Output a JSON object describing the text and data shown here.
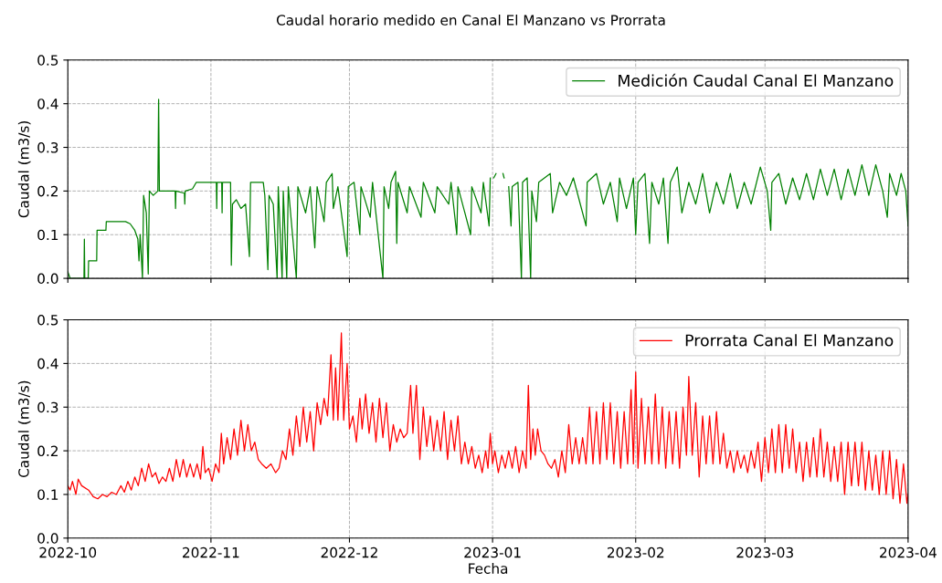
{
  "chart_data": [
    {
      "type": "line",
      "title": "Caudal horario medido en Canal El Manzano vs Prorrata",
      "ylabel": "Caudal (m3/s)",
      "xlim": [
        "2022-10-01",
        "2023-04-01"
      ],
      "xticks": [
        {
          "value": "2022-10-01",
          "label": null
        },
        {
          "value": "2022-11-01",
          "label": null
        },
        {
          "value": "2022-12-01",
          "label": null
        },
        {
          "value": "2023-01-01",
          "label": null
        },
        {
          "value": "2023-02-01",
          "label": null
        },
        {
          "value": "2023-03-01",
          "label": null
        },
        {
          "value": "2023-04-01",
          "label": null
        }
      ],
      "ylim": [
        0,
        0.5
      ],
      "yticks": [
        {
          "value": 0,
          "label": "0.0"
        },
        0.1,
        0.2,
        0.3,
        0.4,
        0.5
      ],
      "grid": true,
      "legend": "top right",
      "tick_labels": "y",
      "series": [
        {
          "name": "Medición Caudal Canal El Manzano",
          "color": "#008000",
          "x": [
            "2022-10-01T00:00",
            "2022-10-01T12:00",
            "2022-10-04T12:00",
            "2022-10-04T14:00",
            "2022-10-04T16:00",
            "2022-10-05T10:00",
            "2022-10-05T12:00",
            "2022-10-07T06:00",
            "2022-10-07T08:00",
            "2022-10-09T06:00",
            "2022-10-09T08:00",
            "2022-10-13T12:00",
            "2022-10-14T12:00",
            "2022-10-15T12:00",
            "2022-10-16T04:00",
            "2022-10-16T10:00",
            "2022-10-16T16:00",
            "2022-10-17T04:00",
            "2022-10-17T10:00",
            "2022-10-18T00:00",
            "2022-10-18T10:00",
            "2022-10-18T16:00",
            "2022-10-19T12:00",
            "2022-10-20T12:00",
            "2022-10-20T16:00",
            "2022-10-20T20:00",
            "2022-10-22T12:00",
            "2022-10-24T06:00",
            "2022-10-24T08:00",
            "2022-10-24T10:00",
            "2022-10-26T06:00",
            "2022-10-26T08:00",
            "2022-10-26T10:00",
            "2022-10-28T00:00",
            "2022-10-28T20:00",
            "2022-11-01T12:00",
            "2022-11-02T04:00",
            "2022-11-02T06:00",
            "2022-11-02T08:00",
            "2022-11-03T08:00",
            "2022-11-03T10:00",
            "2022-11-03T12:00",
            "2022-11-05T06:00",
            "2022-11-05T10:00",
            "2022-11-05T16:00",
            "2022-11-06T12:00",
            "2022-11-07T12:00",
            "2022-11-08T12:00",
            "2022-11-09T08:00",
            "2022-11-09T14:00",
            "2022-11-12T08:00",
            "2022-11-12T16:00",
            "2022-11-13T08:00",
            "2022-11-13T14:00",
            "2022-11-14T12:00",
            "2022-11-15T08:00",
            "2022-11-15T14:00",
            "2022-11-16T10:00",
            "2022-11-16T16:00",
            "2022-11-17T10:00",
            "2022-11-17T18:00",
            "2022-11-19T12:00",
            "2022-11-19T20:00",
            "2022-11-21T12:00",
            "2022-11-22T12:00",
            "2022-11-23T12:00",
            "2022-11-24T00:00",
            "2022-11-25T12:00",
            "2022-11-26T00:00",
            "2022-11-27T06:00",
            "2022-11-27T12:00",
            "2022-11-28T12:00",
            "2022-11-30T12:00",
            "2022-11-30T18:00",
            "2022-12-02T00:00",
            "2022-12-03T06:00",
            "2022-12-03T12:00",
            "2022-12-05T12:00",
            "2022-12-06T00:00",
            "2022-12-08T06:00",
            "2022-12-08T12:00",
            "2022-12-09T12:00",
            "2022-12-10T00:00",
            "2022-12-11T00:00",
            "2022-12-11T06:00",
            "2022-12-11T12:00",
            "2022-12-13T12:00",
            "2022-12-14T00:00",
            "2022-12-16T12:00",
            "2022-12-17T00:00",
            "2022-12-19T12:00",
            "2022-12-20T00:00",
            "2022-12-22T12:00",
            "2022-12-23T00:00",
            "2022-12-24T06:00",
            "2022-12-24T12:00",
            "2022-12-27T06:00",
            "2022-12-27T12:00",
            "2022-12-29T12:00",
            "2022-12-30T00:00",
            "2022-12-31T06:00",
            "2022-12-31T12:00",
            "2022-12-31T18:00",
            "2023-01-01T06:00",
            "2023-01-01T18:00",
            "2023-01-02T06:00",
            "2023-01-03T06:00",
            "2023-01-03T12:00",
            "2023-01-04T00:00",
            "2023-01-04T12:00",
            "2023-01-05T00:00",
            "2023-01-05T06:00",
            "2023-01-06T12:00",
            "2023-01-07T06:00",
            "2023-01-07T12:00",
            "2023-01-08T12:00",
            "2023-01-09T06:00",
            "2023-01-09T12:00",
            "2023-01-10T12:00",
            "2023-01-11T00:00",
            "2023-01-13T12:00",
            "2023-01-14T00:00",
            "2023-01-15T12:00",
            "2023-01-17T00:00",
            "2023-01-18T12:00",
            "2023-01-20T00:00",
            "2023-01-21T06:00",
            "2023-01-21T12:00",
            "2023-01-23T12:00",
            "2023-01-25T00:00",
            "2023-01-26T12:00",
            "2023-01-28T00:00",
            "2023-01-28T12:00",
            "2023-01-30T00:00",
            "2023-01-31T12:00",
            "2023-02-01T00:00",
            "2023-02-01T12:00",
            "2023-02-03T00:00",
            "2023-02-04T00:00",
            "2023-02-04T12:00",
            "2023-02-06T00:00",
            "2023-02-07T00:00",
            "2023-02-08T00:00",
            "2023-02-08T12:00",
            "2023-02-10T00:00",
            "2023-02-11T00:00",
            "2023-02-12T12:00",
            "2023-02-14T00:00",
            "2023-02-15T12:00",
            "2023-02-17T00:00",
            "2023-02-18T12:00",
            "2023-02-20T00:00",
            "2023-02-21T12:00",
            "2023-02-23T00:00",
            "2023-02-24T12:00",
            "2023-02-26T00:00",
            "2023-02-28T00:00",
            "2023-03-01T12:00",
            "2023-03-02T06:00",
            "2023-03-02T12:00",
            "2023-03-04T00:00",
            "2023-03-05T12:00",
            "2023-03-07T00:00",
            "2023-03-08T12:00",
            "2023-03-10T00:00",
            "2023-03-11T12:00",
            "2023-03-13T00:00",
            "2023-03-14T12:00",
            "2023-03-16T00:00",
            "2023-03-17T12:00",
            "2023-03-19T00:00",
            "2023-03-20T12:00",
            "2023-03-22T00:00",
            "2023-03-23T12:00",
            "2023-03-25T00:00",
            "2023-03-26T12:00",
            "2023-03-27T12:00",
            "2023-03-28T00:00",
            "2023-03-29T12:00",
            "2023-03-30T12:00",
            "2023-03-31T12:00",
            "2023-04-01T00:00"
          ],
          "values": [
            0.015,
            0.0,
            0.0,
            0.09,
            0.0,
            0.0,
            0.04,
            0.04,
            0.11,
            0.11,
            0.13,
            0.13,
            0.125,
            0.11,
            0.09,
            0.04,
            0.1,
            0.0,
            0.19,
            0.15,
            0.01,
            0.2,
            0.19,
            0.2,
            0.41,
            0.2,
            0.2,
            0.2,
            0.16,
            0.2,
            0.195,
            0.17,
            0.2,
            0.205,
            0.22,
            0.22,
            0.22,
            0.16,
            0.22,
            0.22,
            0.15,
            0.22,
            0.22,
            0.03,
            0.17,
            0.18,
            0.16,
            0.17,
            0.05,
            0.22,
            0.22,
            0.19,
            0.02,
            0.19,
            0.17,
            0.0,
            0.21,
            0.0,
            0.2,
            0.0,
            0.21,
            0.0,
            0.21,
            0.15,
            0.21,
            0.07,
            0.21,
            0.13,
            0.22,
            0.24,
            0.16,
            0.21,
            0.05,
            0.21,
            0.22,
            0.1,
            0.21,
            0.14,
            0.22,
            0.0,
            0.21,
            0.16,
            0.22,
            0.245,
            0.08,
            0.22,
            0.15,
            0.21,
            0.14,
            0.22,
            0.15,
            0.21,
            0.17,
            0.22,
            0.1,
            0.21,
            0.1,
            0.21,
            0.15,
            0.22,
            0.12,
            0.23,
            null,
            0.23,
            0.24,
            null,
            0.24,
            0.23,
            null,
            0.21,
            0.12,
            0.21,
            0.22,
            0.0,
            0.22,
            0.23,
            0.0,
            0.2,
            0.13,
            0.22,
            0.24,
            0.15,
            0.22,
            0.19,
            0.23,
            0.17,
            0.12,
            0.22,
            0.24,
            0.17,
            0.22,
            0.13,
            0.23,
            0.16,
            0.23,
            0.1,
            0.22,
            0.24,
            0.08,
            0.22,
            0.17,
            0.23,
            0.08,
            0.22,
            0.255,
            0.15,
            0.22,
            0.17,
            0.24,
            0.15,
            0.22,
            0.17,
            0.24,
            0.16,
            0.22,
            0.17,
            0.255,
            0.2,
            0.11,
            0.22,
            0.24,
            0.17,
            0.23,
            0.18,
            0.24,
            0.18,
            0.25,
            0.19,
            0.25,
            0.18,
            0.25,
            0.19,
            0.26,
            0.19,
            0.26,
            0.2,
            0.14,
            0.24,
            0.19,
            0.24,
            0.2,
            0.12
          ]
        }
      ]
    },
    {
      "type": "line",
      "ylabel": "Caudal (m3/s)",
      "xlabel": "Fecha",
      "xlim": [
        "2022-10-01",
        "2023-04-01"
      ],
      "xticks": [
        {
          "value": "2022-10-01",
          "label": "2022-10"
        },
        {
          "value": "2022-11-01",
          "label": "2022-11"
        },
        {
          "value": "2022-12-01",
          "label": "2022-12"
        },
        {
          "value": "2023-01-01",
          "label": "2023-01"
        },
        {
          "value": "2023-02-01",
          "label": "2023-02"
        },
        {
          "value": "2023-03-01",
          "label": "2023-03"
        },
        {
          "value": "2023-04-01",
          "label": "2023-04"
        }
      ],
      "ylim": [
        0,
        0.5
      ],
      "yticks": [
        {
          "value": 0,
          "label": "0.0"
        },
        0.1,
        0.2,
        0.3,
        0.4,
        0.5
      ],
      "grid": true,
      "legend": "top right",
      "series": [
        {
          "name": "Prorrata Canal El Manzano",
          "color": "#ff0000",
          "x": [
            "2022-10-01T00:00",
            "2022-10-01T12:00",
            "2022-10-02T00:00",
            "2022-10-02T18:00",
            "2022-10-03T06:00",
            "2022-10-04T00:00",
            "2022-10-05T12:00",
            "2022-10-06T12:00",
            "2022-10-07T12:00",
            "2022-10-08T12:00",
            "2022-10-09T12:00",
            "2022-10-10T12:00",
            "2022-10-11T12:00",
            "2022-10-12T12:00",
            "2022-10-13T06:00",
            "2022-10-14T00:00",
            "2022-10-14T18:00",
            "2022-10-15T12:00",
            "2022-10-16T06:00",
            "2022-10-17T00:00",
            "2022-10-17T18:00",
            "2022-10-18T12:00",
            "2022-10-19T06:00",
            "2022-10-20T00:00",
            "2022-10-20T18:00",
            "2022-10-21T12:00",
            "2022-10-22T06:00",
            "2022-10-23T00:00",
            "2022-10-23T18:00",
            "2022-10-24T12:00",
            "2022-10-25T06:00",
            "2022-10-26T00:00",
            "2022-10-26T18:00",
            "2022-10-27T12:00",
            "2022-10-28T06:00",
            "2022-10-29T00:00",
            "2022-10-29T18:00",
            "2022-10-30T06:00",
            "2022-10-30T18:00",
            "2022-10-31T12:00",
            "2022-11-01T06:00",
            "2022-11-02T00:00",
            "2022-11-02T18:00",
            "2022-11-03T06:00",
            "2022-11-03T18:00",
            "2022-11-04T12:00",
            "2022-11-05T06:00",
            "2022-11-06T00:00",
            "2022-11-06T18:00",
            "2022-11-07T12:00",
            "2022-11-08T06:00",
            "2022-11-09T00:00",
            "2022-11-09T18:00",
            "2022-11-10T12:00",
            "2022-11-11T06:00",
            "2022-11-12T00:00",
            "2022-11-13T00:00",
            "2022-11-14T00:00",
            "2022-11-15T00:00",
            "2022-11-15T18:00",
            "2022-11-16T12:00",
            "2022-11-17T06:00",
            "2022-11-18T00:00",
            "2022-11-18T18:00",
            "2022-11-19T12:00",
            "2022-11-20T06:00",
            "2022-11-21T00:00",
            "2022-11-21T18:00",
            "2022-11-22T12:00",
            "2022-11-23T06:00",
            "2022-11-24T00:00",
            "2022-11-24T18:00",
            "2022-11-25T12:00",
            "2022-11-26T06:00",
            "2022-11-27T00:00",
            "2022-11-27T12:00",
            "2022-11-28T00:00",
            "2022-11-28T12:00",
            "2022-11-29T06:00",
            "2022-11-29T18:00",
            "2022-11-30T12:00",
            "2022-12-01T00:00",
            "2022-12-01T18:00",
            "2022-12-02T12:00",
            "2022-12-03T06:00",
            "2022-12-03T18:00",
            "2022-12-04T12:00",
            "2022-12-05T06:00",
            "2022-12-06T00:00",
            "2022-12-06T18:00",
            "2022-12-07T12:00",
            "2022-12-08T06:00",
            "2022-12-09T00:00",
            "2022-12-09T18:00",
            "2022-12-10T12:00",
            "2022-12-11T06:00",
            "2022-12-12T00:00",
            "2022-12-12T18:00",
            "2022-12-13T12:00",
            "2022-12-14T06:00",
            "2022-12-14T18:00",
            "2022-12-15T12:00",
            "2022-12-16T06:00",
            "2022-12-17T00:00",
            "2022-12-17T18:00",
            "2022-12-18T12:00",
            "2022-12-19T06:00",
            "2022-12-20T00:00",
            "2022-12-20T18:00",
            "2022-12-21T12:00",
            "2022-12-22T06:00",
            "2022-12-23T00:00",
            "2022-12-23T18:00",
            "2022-12-24T12:00",
            "2022-12-25T06:00",
            "2022-12-26T00:00",
            "2022-12-26T18:00",
            "2022-12-27T12:00",
            "2022-12-28T06:00",
            "2022-12-29T00:00",
            "2022-12-29T18:00",
            "2022-12-30T12:00",
            "2022-12-31T00:00",
            "2022-12-31T12:00",
            "2023-01-01T00:00",
            "2023-01-01T12:00",
            "2023-01-02T06:00",
            "2023-01-03T00:00",
            "2023-01-03T18:00",
            "2023-01-04T12:00",
            "2023-01-05T06:00",
            "2023-01-06T00:00",
            "2023-01-06T18:00",
            "2023-01-07T12:00",
            "2023-01-08T06:00",
            "2023-01-08T18:00",
            "2023-01-09T06:00",
            "2023-01-09T18:00",
            "2023-01-10T06:00",
            "2023-01-10T18:00",
            "2023-01-11T12:00",
            "2023-01-12T06:00",
            "2023-01-13T00:00",
            "2023-01-13T18:00",
            "2023-01-14T12:00",
            "2023-01-15T06:00",
            "2023-01-16T00:00",
            "2023-01-16T18:00",
            "2023-01-17T12:00",
            "2023-01-18T06:00",
            "2023-01-19T00:00",
            "2023-01-19T18:00",
            "2023-01-20T12:00",
            "2023-01-21T06:00",
            "2023-01-22T00:00",
            "2023-01-22T18:00",
            "2023-01-23T12:00",
            "2023-01-24T06:00",
            "2023-01-25T00:00",
            "2023-01-25T18:00",
            "2023-01-26T12:00",
            "2023-01-27T06:00",
            "2023-01-28T00:00",
            "2023-01-28T18:00",
            "2023-01-29T12:00",
            "2023-01-30T06:00",
            "2023-01-31T00:00",
            "2023-01-31T12:00",
            "2023-02-01T00:00",
            "2023-02-01T12:00",
            "2023-02-02T06:00",
            "2023-02-03T00:00",
            "2023-02-03T18:00",
            "2023-02-04T12:00",
            "2023-02-05T06:00",
            "2023-02-06T00:00",
            "2023-02-06T18:00",
            "2023-02-07T12:00",
            "2023-02-08T06:00",
            "2023-02-09T00:00",
            "2023-02-09T18:00",
            "2023-02-10T12:00",
            "2023-02-11T06:00",
            "2023-02-12T00:00",
            "2023-02-12T12:00",
            "2023-02-13T06:00",
            "2023-02-14T00:00",
            "2023-02-14T18:00",
            "2023-02-15T12:00",
            "2023-02-16T06:00",
            "2023-02-17T00:00",
            "2023-02-17T18:00",
            "2023-02-18T12:00",
            "2023-02-19T06:00",
            "2023-02-20T00:00",
            "2023-02-20T18:00",
            "2023-02-21T12:00",
            "2023-02-22T06:00",
            "2023-02-23T00:00",
            "2023-02-23T18:00",
            "2023-02-24T12:00",
            "2023-02-25T06:00",
            "2023-02-26T00:00",
            "2023-02-26T18:00",
            "2023-02-27T12:00",
            "2023-02-28T06:00",
            "2023-03-01T00:00",
            "2023-03-01T18:00",
            "2023-03-02T12:00",
            "2023-03-03T06:00",
            "2023-03-04T00:00",
            "2023-03-04T18:00",
            "2023-03-05T12:00",
            "2023-03-06T06:00",
            "2023-03-07T00:00",
            "2023-03-07T18:00",
            "2023-03-08T12:00",
            "2023-03-09T06:00",
            "2023-03-10T00:00",
            "2023-03-10T18:00",
            "2023-03-11T12:00",
            "2023-03-12T06:00",
            "2023-03-13T00:00",
            "2023-03-13T18:00",
            "2023-03-14T12:00",
            "2023-03-15T06:00",
            "2023-03-16T00:00",
            "2023-03-16T18:00",
            "2023-03-17T12:00",
            "2023-03-18T06:00",
            "2023-03-19T00:00",
            "2023-03-19T18:00",
            "2023-03-20T12:00",
            "2023-03-21T06:00",
            "2023-03-22T00:00",
            "2023-03-22T18:00",
            "2023-03-23T12:00",
            "2023-03-24T06:00",
            "2023-03-25T00:00",
            "2023-03-25T18:00",
            "2023-03-26T12:00",
            "2023-03-27T06:00",
            "2023-03-28T00:00",
            "2023-03-28T18:00",
            "2023-03-29T12:00",
            "2023-03-30T06:00",
            "2023-03-31T00:00",
            "2023-03-31T18:00",
            "2023-04-01T00:00"
          ],
          "values": [
            0.12,
            0.11,
            0.13,
            0.1,
            0.135,
            0.12,
            0.11,
            0.095,
            0.09,
            0.1,
            0.095,
            0.105,
            0.1,
            0.12,
            0.105,
            0.13,
            0.11,
            0.14,
            0.12,
            0.16,
            0.13,
            0.17,
            0.14,
            0.15,
            0.125,
            0.14,
            0.13,
            0.16,
            0.13,
            0.18,
            0.14,
            0.18,
            0.14,
            0.17,
            0.14,
            0.17,
            0.135,
            0.21,
            0.15,
            0.16,
            0.13,
            0.17,
            0.15,
            0.24,
            0.17,
            0.23,
            0.18,
            0.25,
            0.19,
            0.27,
            0.2,
            0.26,
            0.2,
            0.22,
            0.18,
            0.17,
            0.16,
            0.17,
            0.15,
            0.16,
            0.2,
            0.18,
            0.25,
            0.19,
            0.28,
            0.21,
            0.3,
            0.22,
            0.29,
            0.2,
            0.31,
            0.26,
            0.32,
            0.28,
            0.42,
            0.27,
            0.39,
            0.27,
            0.47,
            0.27,
            0.4,
            0.25,
            0.28,
            0.22,
            0.32,
            0.25,
            0.33,
            0.24,
            0.31,
            0.22,
            0.32,
            0.23,
            0.31,
            0.2,
            0.26,
            0.22,
            0.25,
            0.23,
            0.24,
            0.35,
            0.24,
            0.35,
            0.18,
            0.3,
            0.21,
            0.28,
            0.2,
            0.27,
            0.2,
            0.29,
            0.18,
            0.27,
            0.2,
            0.28,
            0.17,
            0.22,
            0.17,
            0.21,
            0.16,
            0.19,
            0.15,
            0.2,
            0.16,
            0.24,
            0.17,
            0.2,
            0.15,
            0.19,
            0.16,
            0.2,
            0.16,
            0.21,
            0.15,
            0.2,
            0.16,
            0.35,
            0.18,
            0.25,
            0.19,
            0.25,
            0.2,
            0.19,
            0.17,
            0.16,
            0.18,
            0.14,
            0.2,
            0.15,
            0.26,
            0.17,
            0.23,
            0.17,
            0.23,
            0.17,
            0.3,
            0.17,
            0.29,
            0.17,
            0.31,
            0.18,
            0.31,
            0.17,
            0.29,
            0.16,
            0.29,
            0.17,
            0.34,
            0.17,
            0.38,
            0.16,
            0.32,
            0.17,
            0.3,
            0.17,
            0.33,
            0.17,
            0.3,
            0.16,
            0.29,
            0.17,
            0.29,
            0.16,
            0.3,
            0.19,
            0.37,
            0.19,
            0.31,
            0.14,
            0.28,
            0.17,
            0.28,
            0.17,
            0.29,
            0.17,
            0.24,
            0.16,
            0.2,
            0.15,
            0.2,
            0.16,
            0.19,
            0.15,
            0.2,
            0.16,
            0.22,
            0.13,
            0.23,
            0.15,
            0.25,
            0.15,
            0.26,
            0.15,
            0.26,
            0.16,
            0.25,
            0.15,
            0.22,
            0.13,
            0.22,
            0.14,
            0.23,
            0.14,
            0.25,
            0.14,
            0.22,
            0.13,
            0.21,
            0.13,
            0.22,
            0.1,
            0.22,
            0.12,
            0.22,
            0.12,
            0.22,
            0.11,
            0.2,
            0.11,
            0.19,
            0.1,
            0.2,
            0.1,
            0.2,
            0.09,
            0.18,
            0.08,
            0.17,
            0.08,
            0.1
          ]
        }
      ]
    }
  ]
}
